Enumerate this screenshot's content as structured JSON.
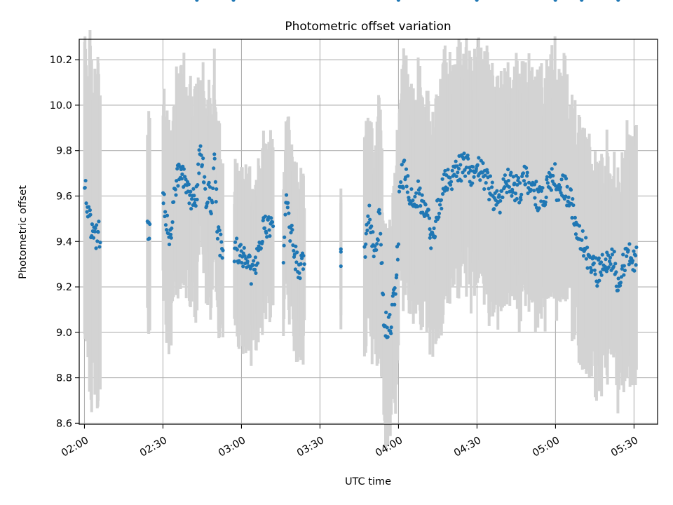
{
  "chart_data": {
    "type": "scatter",
    "title": "Photometric offset variation",
    "xlabel": "UTC time",
    "ylabel": "Photometric offset",
    "x_is_time": true,
    "xlim": [
      "01:58",
      "05:39"
    ],
    "ylim": [
      8.595,
      10.29
    ],
    "x_ticks": [
      "02:00",
      "02:30",
      "03:00",
      "03:30",
      "04:00",
      "04:30",
      "05:00",
      "05:30"
    ],
    "y_ticks": [
      8.6,
      8.8,
      9.0,
      9.2,
      9.4,
      9.6,
      9.8,
      10.0,
      10.2
    ],
    "grid": true,
    "point_color": "#1f77b4",
    "errorbar_color": "#d3d3d3",
    "segments": [
      {
        "start": "02:00",
        "end": "02:06",
        "base": [
          9.64,
          9.58,
          9.53,
          9.46,
          9.43,
          9.43,
          9.43,
          9.43
        ],
        "err": 0.62
      },
      {
        "start": "02:24",
        "end": "02:25",
        "base": [
          9.43,
          9.43,
          9.43
        ],
        "err": 0.38
      },
      {
        "start": "02:30",
        "end": "02:43",
        "base": [
          9.6,
          9.48,
          9.4,
          9.6,
          9.7,
          9.72,
          9.66,
          9.62,
          9.58,
          9.62
        ],
        "err": 0.4
      },
      {
        "start": "02:43",
        "end": "02:53",
        "base": [
          9.62,
          9.8,
          9.72,
          9.58,
          9.64,
          9.55,
          9.78,
          9.48,
          9.38,
          9.37
        ],
        "err": 0.37
      },
      {
        "start": "02:57",
        "end": "03:12",
        "base": [
          9.37,
          9.36,
          9.34,
          9.32,
          9.26,
          9.3,
          9.4,
          9.46,
          9.45,
          9.45
        ],
        "err": 0.32
      },
      {
        "start": "03:16",
        "end": "03:24",
        "base": [
          9.24,
          9.6,
          9.48,
          9.4,
          9.34,
          9.26,
          9.3,
          9.31
        ],
        "err": 0.34
      },
      {
        "start": "03:38",
        "end": "03:38",
        "base": [
          9.31
        ],
        "err": 0.25
      },
      {
        "start": "03:47",
        "end": "04:00",
        "base": [
          9.32,
          9.55,
          9.4,
          9.36,
          9.52,
          9.1,
          9.0,
          9.05,
          9.17,
          9.42
        ],
        "err": 0.42
      },
      {
        "start": "04:00",
        "end": "04:12",
        "base": [
          9.52,
          9.68,
          9.7,
          9.68,
          9.62,
          9.6,
          9.58,
          9.62,
          9.56,
          9.52,
          9.5,
          9.48
        ],
        "err": 0.42
      },
      {
        "start": "04:12",
        "end": "04:30",
        "base": [
          9.4,
          9.46,
          9.56,
          9.62,
          9.68,
          9.68,
          9.7,
          9.72,
          9.74,
          9.72,
          9.7,
          9.72
        ],
        "err": 0.44
      },
      {
        "start": "04:30",
        "end": "05:00",
        "base": [
          9.72,
          9.7,
          9.66,
          9.6,
          9.56,
          9.62,
          9.66,
          9.64,
          9.62,
          9.68,
          9.66,
          9.62,
          9.58,
          9.62,
          9.66,
          9.7
        ],
        "err": 0.44
      },
      {
        "start": "05:00",
        "end": "05:10",
        "base": [
          9.62,
          9.6,
          9.66,
          9.62,
          9.58,
          9.5,
          9.44,
          9.4
        ],
        "err": 0.42
      },
      {
        "start": "05:10",
        "end": "05:24",
        "base": [
          9.42,
          9.36,
          9.3,
          9.28,
          9.26,
          9.3,
          9.28,
          9.34,
          9.3,
          9.22
        ],
        "err": 0.42
      },
      {
        "start": "05:24",
        "end": "05:31",
        "base": [
          9.24,
          9.3,
          9.33,
          9.33,
          9.33
        ],
        "err": 0.44
      }
    ]
  }
}
